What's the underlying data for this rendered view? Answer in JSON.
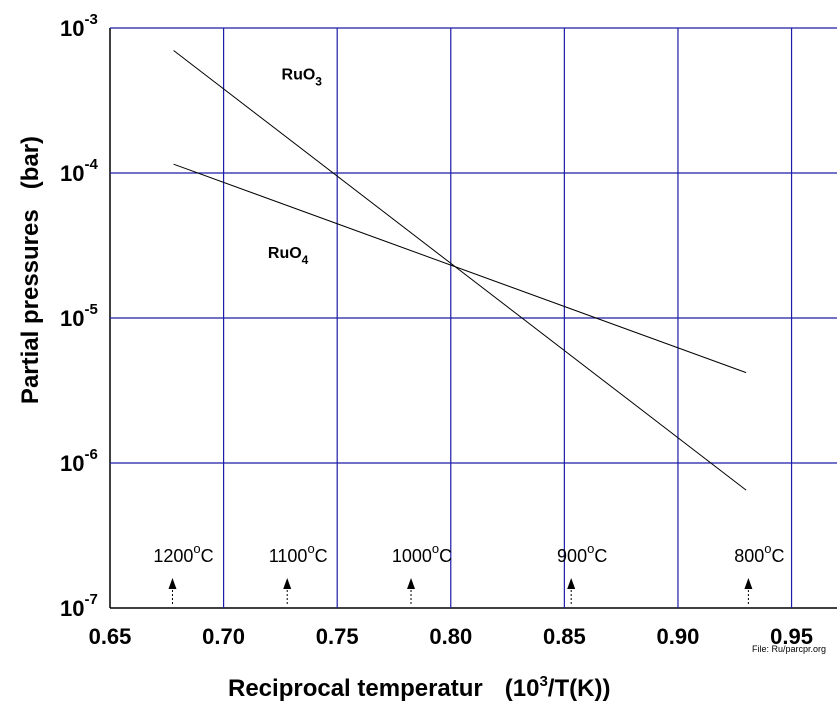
{
  "chart_data": {
    "type": "line",
    "title": "",
    "xlabel": {
      "main": "Reciprocal temperatur",
      "unit_pre": "(10",
      "unit_sup": "3",
      "unit_post": "/T(K))"
    },
    "ylabel": {
      "main": "Partial pressures",
      "unit": "(bar)"
    },
    "xlim": [
      0.65,
      0.97
    ],
    "ylim": [
      1e-07,
      0.001
    ],
    "yscale": "log",
    "x_ticks": [
      "0.65",
      "0.70",
      "0.75",
      "0.80",
      "0.85",
      "0.90",
      "0.95"
    ],
    "x_tick_values": [
      0.65,
      0.7,
      0.75,
      0.8,
      0.85,
      0.9,
      0.95
    ],
    "y_ticks": [
      {
        "base": "10",
        "exp": "-7",
        "value": 1e-07
      },
      {
        "base": "10",
        "exp": "-6",
        "value": 1e-06
      },
      {
        "base": "10",
        "exp": "-5",
        "value": 1e-05
      },
      {
        "base": "10",
        "exp": "-4",
        "value": 0.0001
      },
      {
        "base": "10",
        "exp": "-3",
        "value": 0.001
      }
    ],
    "grid": true,
    "grid_color": "#1c1ca8",
    "series": [
      {
        "name": "RuO3",
        "label_main": "RuO",
        "label_sub": "3",
        "color": "#000000",
        "x": [
          0.678,
          0.93
        ],
        "y": [
          0.0007,
          6.5e-07
        ],
        "label_at": {
          "x": 0.7255,
          "y": 0.00044
        }
      },
      {
        "name": "RuO4",
        "label_main": "RuO",
        "label_sub": "4",
        "color": "#000000",
        "x": [
          0.678,
          0.93
        ],
        "y": [
          0.000115,
          4.2e-06
        ],
        "label_at": {
          "x": 0.7195,
          "y": 2.6e-05
        }
      }
    ],
    "temperature_markers": [
      {
        "x": 0.6775,
        "num": "1200",
        "deg": "o",
        "unit": "C"
      },
      {
        "x": 0.728,
        "num": "1100",
        "deg": "o",
        "unit": "C"
      },
      {
        "x": 0.7825,
        "num": "1000",
        "deg": "o",
        "unit": "C"
      },
      {
        "x": 0.853,
        "num": "900",
        "deg": "o",
        "unit": "C"
      },
      {
        "x": 0.931,
        "num": "800",
        "deg": "o",
        "unit": "C"
      }
    ],
    "file_note": "File: Ru/parcpr.org"
  }
}
